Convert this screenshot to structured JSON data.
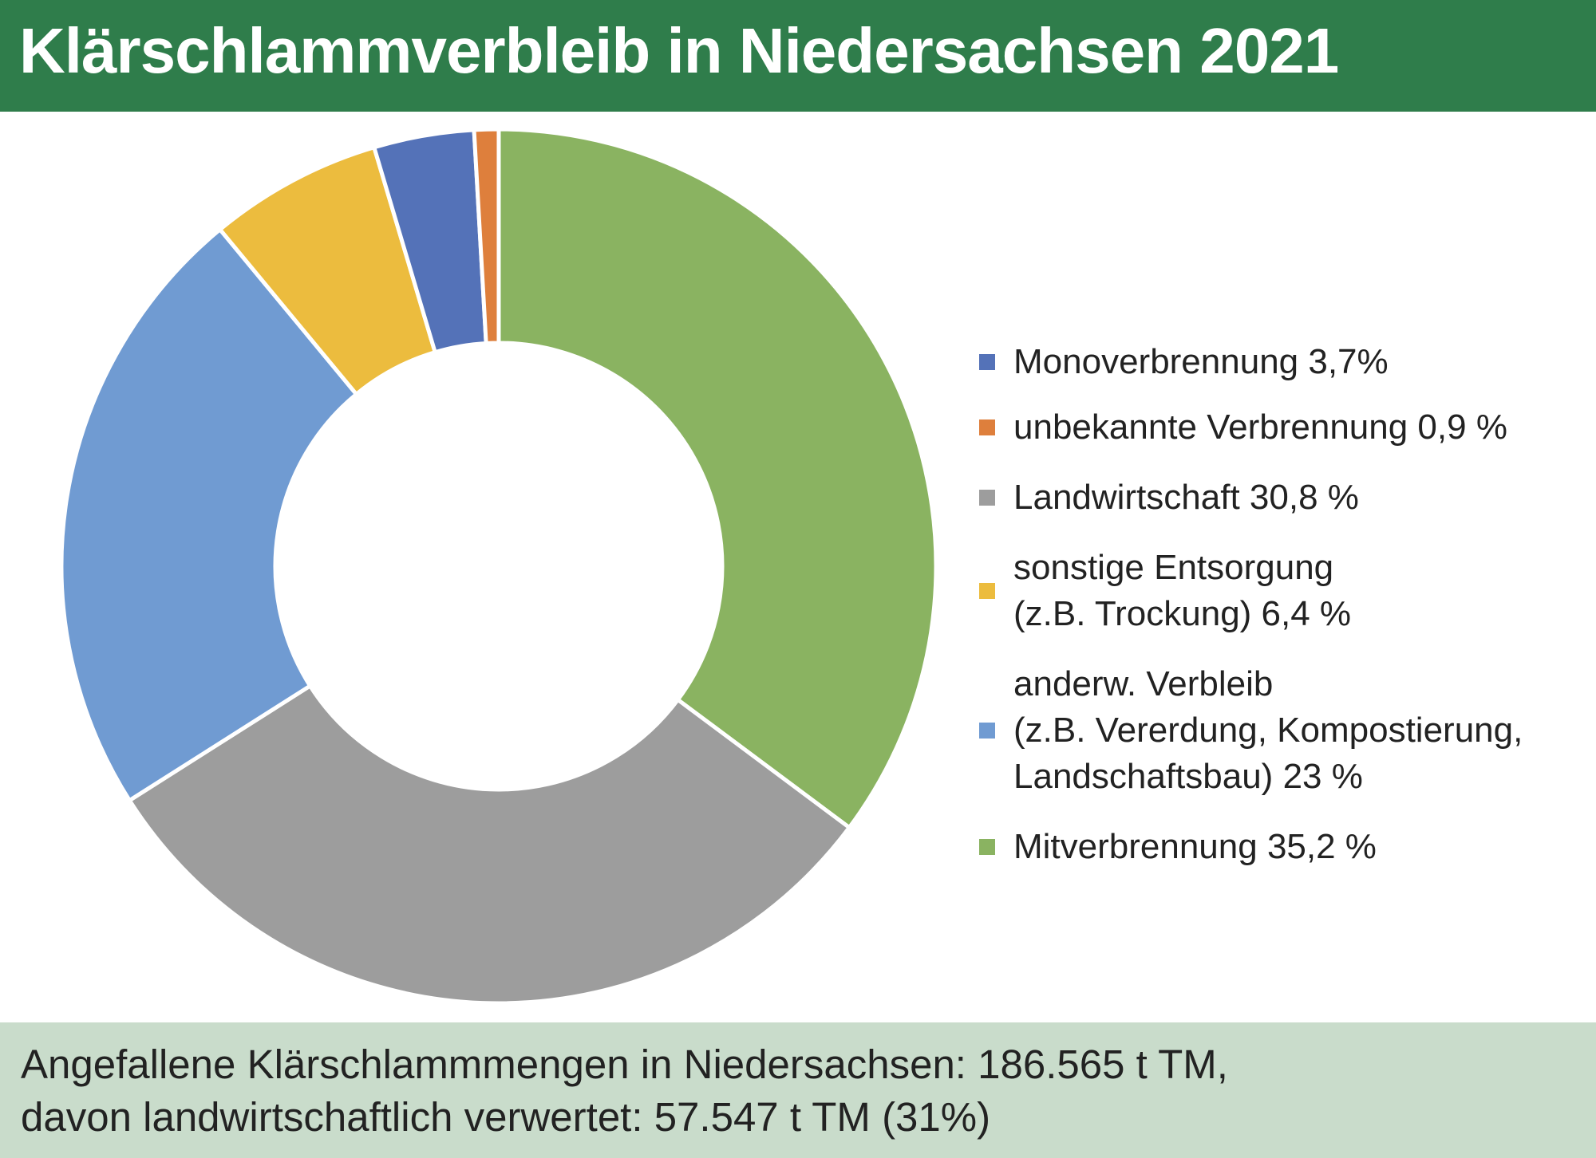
{
  "title": "Klärschlammverbleib in Niedersachsen 2021",
  "chart_data": {
    "type": "pie",
    "title": "Klärschlammverbleib in Niedersachsen 2021",
    "slices": [
      {
        "label": "Mitverbrennung 35,2 %",
        "value": 35.2,
        "color": "#8ab361"
      },
      {
        "label": "Landwirtschaft 30,8 %",
        "value": 30.8,
        "color": "#9d9d9d"
      },
      {
        "label": "anderw. Verbleib\n(z.B. Vererdung, Kompostierung,\nLandschaftsbau) 23 %",
        "value": 23,
        "color": "#709bd2"
      },
      {
        "label": "sonstige Entsorgung\n(z.B. Trockung) 6,4 %",
        "value": 6.4,
        "color": "#ecbc3e"
      },
      {
        "label": "Monoverbrennung 3,7%",
        "value": 3.7,
        "color": "#5472b8"
      },
      {
        "label": "unbekannte Verbrennung 0,9 %",
        "value": 0.9,
        "color": "#de7f3c"
      }
    ],
    "legend": {
      "position": "right",
      "items": [
        {
          "label": "Monoverbrennung 3,7%",
          "color": "#5472b8"
        },
        {
          "label": "unbekannte Verbrennung 0,9 %",
          "color": "#de7f3c"
        },
        {
          "label": "Landwirtschaft 30,8 %",
          "color": "#9d9d9d"
        },
        {
          "label": "sonstige Entsorgung\n(z.B. Trockung) 6,4 %",
          "color": "#ecbc3e"
        },
        {
          "label": "anderw. Verbleib\n(z.B. Vererdung, Kompostierung,\nLandschaftsbau) 23 %",
          "color": "#709bd2"
        },
        {
          "label": "Mitverbrennung 35,2 %",
          "color": "#8ab361"
        }
      ]
    }
  },
  "footer": {
    "line1": "Angefallene Klärschlammmengen in Niedersachsen: 186.565 t TM,",
    "line2": "davon landwirtschaftlich verwertet: 57.547 t TM (31%)"
  },
  "colors": {
    "header_bg": "#2f7d4b",
    "footer_bg": "#c9dccb"
  }
}
